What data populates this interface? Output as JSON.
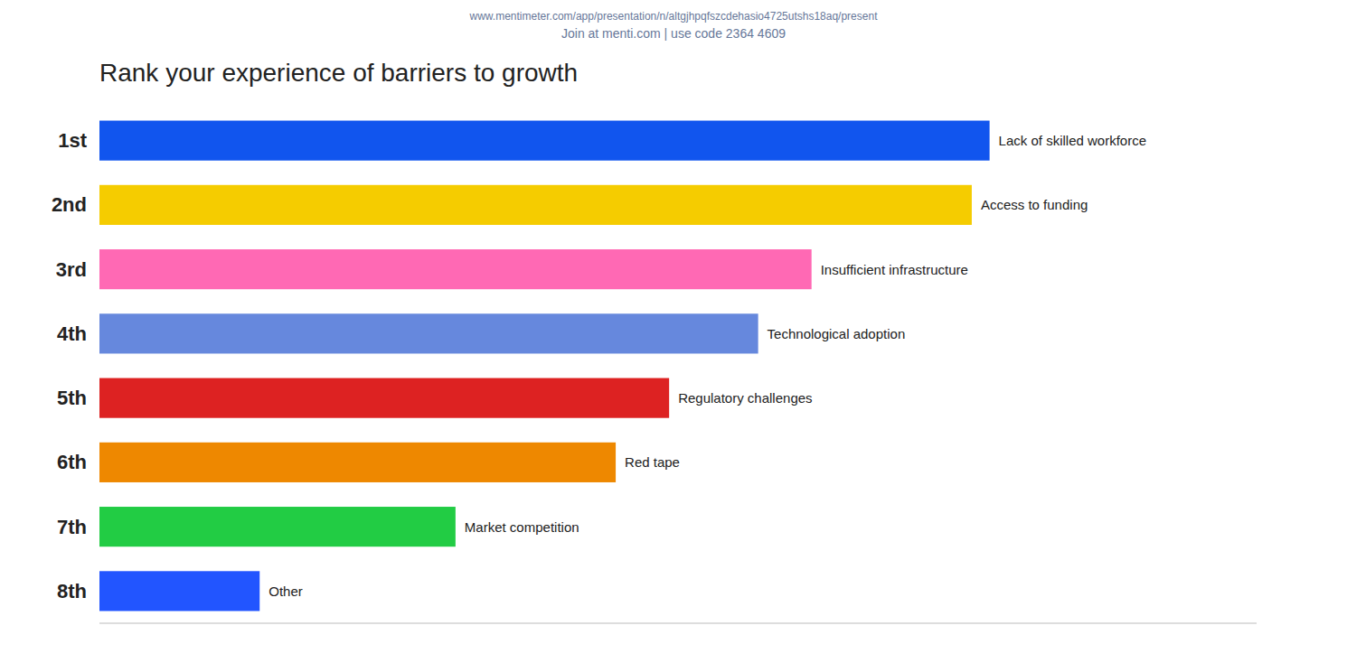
{
  "chart_data": {
    "type": "bar",
    "orientation": "horizontal",
    "title": "Rank your experience of barriers to growth",
    "subtitle": [
      "www.mentimeter.com/app/presentation/n/altgjhpqfszcdehasio4725utshs18aq/present",
      "Join at menti.com | use code  2364 4609"
    ],
    "categories": [
      "1st",
      "2nd",
      "3rd",
      "4th",
      "5th",
      "6th",
      "7th",
      "8th"
    ],
    "values": [
      100,
      98,
      80,
      74,
      64,
      58,
      40,
      18
    ],
    "annotations": [
      "Lack of skilled workforce",
      "Access to funding",
      "Insufficient infrastructure",
      "Technological adoption",
      "Regulatory challenges",
      "Red tape",
      "Market competition",
      "Other"
    ],
    "colors": [
      "#1155ee",
      "#f5cc00",
      "#ff69b4",
      "#6688dd",
      "#dd2222",
      "#ee8800",
      "#22cc44",
      "#2255ff"
    ],
    "xlim": [
      0,
      130
    ],
    "tick_labels": "y",
    "grid": false
  }
}
